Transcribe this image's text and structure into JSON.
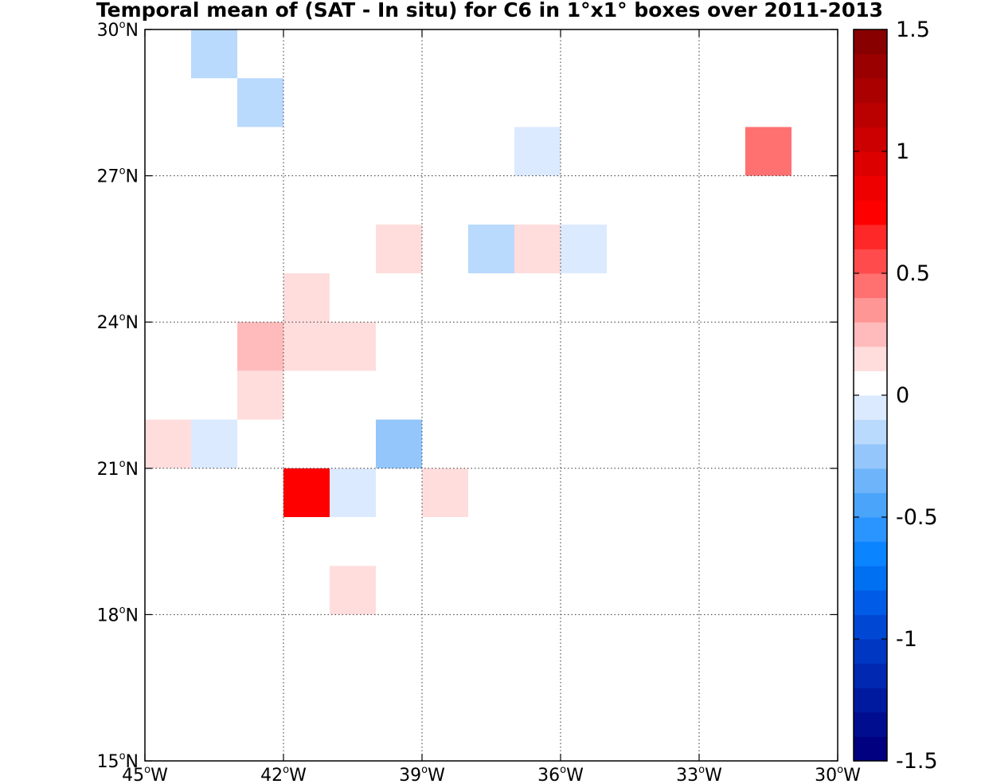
{
  "chart_data": {
    "type": "heatmap",
    "title": "Temporal mean of (SAT - In situ) for C6 in 1°x1° boxes over 2011-2013",
    "xlabel": "",
    "ylabel": "",
    "xlim": [
      -45,
      -30
    ],
    "ylim": [
      15,
      30
    ],
    "grid": true,
    "x_ticks": [
      {
        "value": -45,
        "deg": "45",
        "hemi": "W"
      },
      {
        "value": -42,
        "deg": "42",
        "hemi": "W"
      },
      {
        "value": -39,
        "deg": "39",
        "hemi": "W"
      },
      {
        "value": -36,
        "deg": "36",
        "hemi": "W"
      },
      {
        "value": -33,
        "deg": "33",
        "hemi": "W"
      },
      {
        "value": -30,
        "deg": "30",
        "hemi": "W"
      }
    ],
    "y_ticks": [
      {
        "value": 15,
        "deg": "15",
        "hemi": "N"
      },
      {
        "value": 18,
        "deg": "18",
        "hemi": "N"
      },
      {
        "value": 21,
        "deg": "21",
        "hemi": "N"
      },
      {
        "value": 24,
        "deg": "24",
        "hemi": "N"
      },
      {
        "value": 27,
        "deg": "27",
        "hemi": "N"
      },
      {
        "value": 30,
        "deg": "30",
        "hemi": "N"
      }
    ],
    "colorbar": {
      "min": -1.5,
      "max": 1.5,
      "step": 0.1,
      "ticks": [
        {
          "value": 1.5,
          "label": "1.5"
        },
        {
          "value": 1,
          "label": "1"
        },
        {
          "value": 0.5,
          "label": "0.5"
        },
        {
          "value": 0,
          "label": "0"
        },
        {
          "value": -0.5,
          "label": "-0.5"
        },
        {
          "value": -1,
          "label": "-1"
        },
        {
          "value": -1.5,
          "label": "-1.5"
        }
      ],
      "colors_low_to_high": [
        "#000080",
        "#000d8f",
        "#001a9f",
        "#0028b0",
        "#0037c2",
        "#0048d4",
        "#005ce6",
        "#0070f2",
        "#0a84ff",
        "#2a94ff",
        "#4aa4fa",
        "#6eb4fa",
        "#94c6fc",
        "#b9d9fd",
        "#dbeafe",
        "#ffffff",
        "#ffdddd",
        "#ffbbbb",
        "#ff9696",
        "#ff7070",
        "#ff4b4b",
        "#ff2828",
        "#ff0000",
        "#ee0000",
        "#dc0000",
        "#cc0000",
        "#bb0000",
        "#aa0000",
        "#9a0000",
        "#880000"
      ]
    },
    "cells": [
      {
        "lon": -44,
        "lat": 29,
        "value": -0.2
      },
      {
        "lon": -43,
        "lat": 28,
        "value": -0.2
      },
      {
        "lon": -37,
        "lat": 27,
        "value": -0.1
      },
      {
        "lon": -32,
        "lat": 27,
        "value": 0.4
      },
      {
        "lon": -40,
        "lat": 25,
        "value": 0.1
      },
      {
        "lon": -38,
        "lat": 25,
        "value": -0.2
      },
      {
        "lon": -37,
        "lat": 25,
        "value": 0.1
      },
      {
        "lon": -36,
        "lat": 25,
        "value": -0.1
      },
      {
        "lon": -42,
        "lat": 24,
        "value": 0.1
      },
      {
        "lon": -43,
        "lat": 23,
        "value": 0.2
      },
      {
        "lon": -42,
        "lat": 23,
        "value": 0.1
      },
      {
        "lon": -41,
        "lat": 23,
        "value": 0.1
      },
      {
        "lon": -43,
        "lat": 22,
        "value": 0.1
      },
      {
        "lon": -45,
        "lat": 21,
        "value": 0.1
      },
      {
        "lon": -44,
        "lat": 21,
        "value": -0.1
      },
      {
        "lon": -40,
        "lat": 21,
        "value": -0.3
      },
      {
        "lon": -42,
        "lat": 20,
        "value": 0.7
      },
      {
        "lon": -41,
        "lat": 20,
        "value": -0.1
      },
      {
        "lon": -39,
        "lat": 20,
        "value": 0.1
      },
      {
        "lon": -41,
        "lat": 18,
        "value": 0.1
      }
    ]
  }
}
